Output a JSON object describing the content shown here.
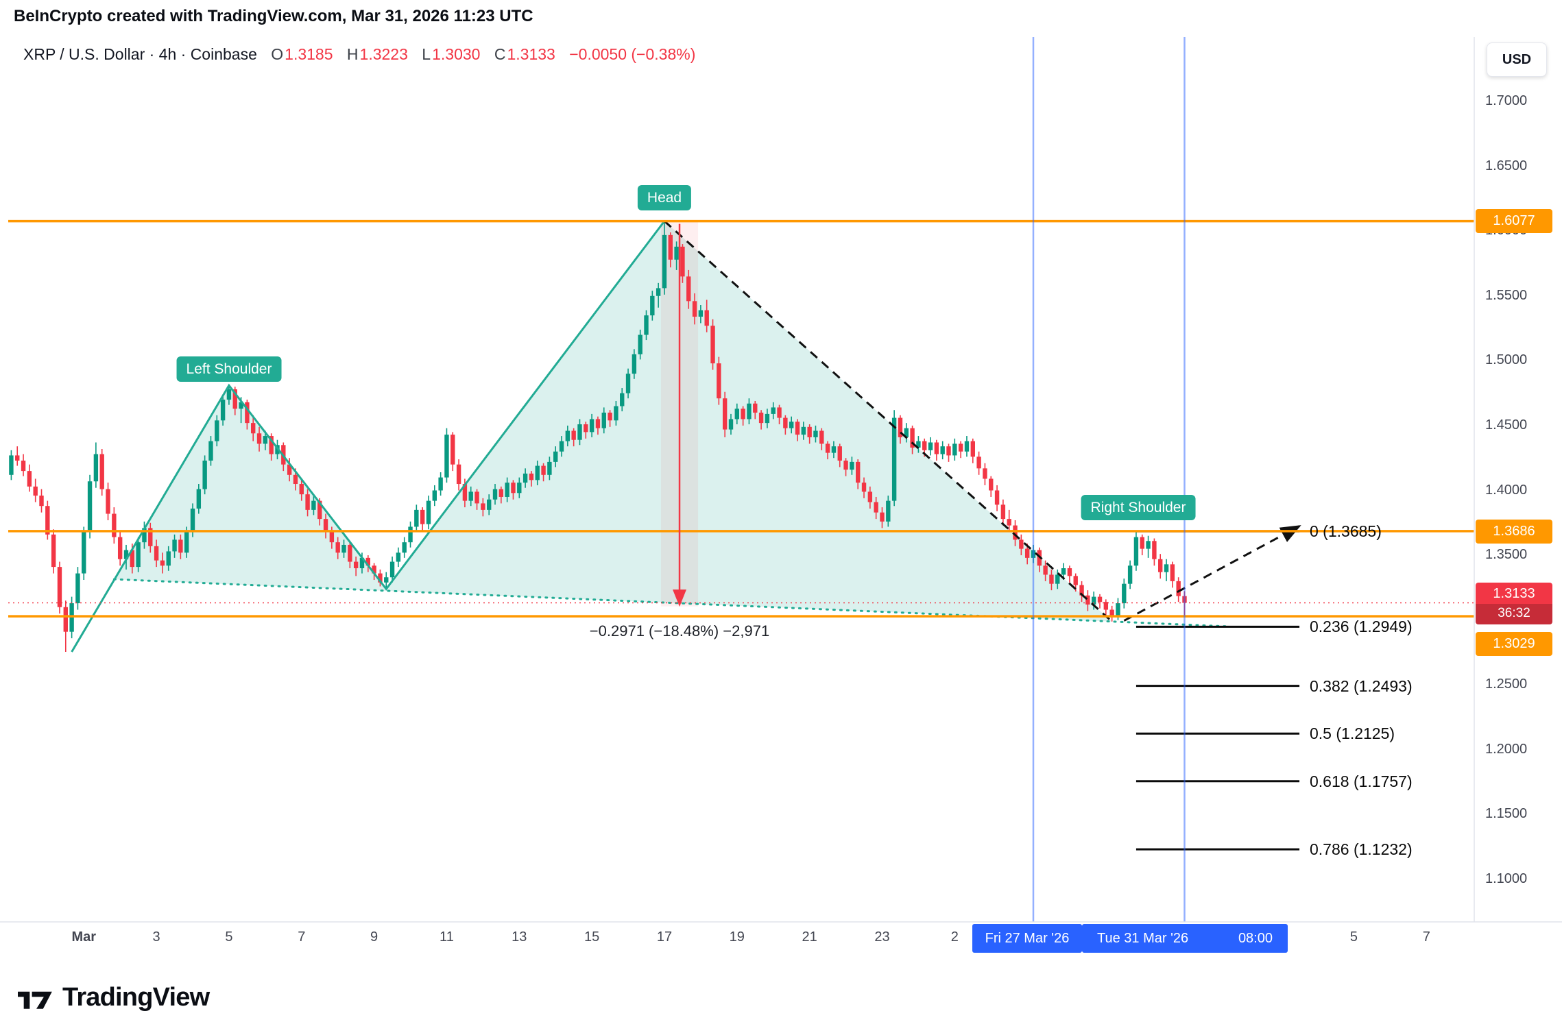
{
  "page": {
    "title_bar": "BeInCrypto created with TradingView.com, Mar 31, 2026 11:23 UTC"
  },
  "header": {
    "symbol": "XRP / U.S. Dollar · 4h · Coinbase",
    "o_label": "O",
    "o": "1.3185",
    "h_label": "H",
    "h": "1.3223",
    "l_label": "L",
    "l": "1.3030",
    "c_label": "C",
    "c": "1.3133",
    "change": "−0.0050 (−0.38%)"
  },
  "price_scale": {
    "currency": "USD",
    "resistance": "1.6077",
    "pattern_top": "1.3686",
    "last": "1.3133",
    "countdown": "36:32",
    "support": "1.3029"
  },
  "time_scale": {
    "badge_1": "Fri 27 Mar '26",
    "badge_2_date": "Tue 31 Mar '26",
    "badge_2_time": "08:00"
  },
  "footer": {
    "brand": "TradingView"
  },
  "colors": {
    "up": "#089981",
    "down": "#f23645",
    "pattern": "#22ab94",
    "pattern_fill": "rgba(34,171,148,0.16)",
    "orange": "#ff9800",
    "blue": "#2962ff",
    "black": "#111111",
    "red": "#f23645"
  },
  "chart_data": {
    "type": "candlestick",
    "title": "XRP / U.S. Dollar · 4h · Coinbase",
    "symbol": "XRP/USD",
    "interval": "4h",
    "exchange": "Coinbase",
    "last_candle_ohlc": {
      "o": 1.3185,
      "h": 1.3223,
      "l": 1.303,
      "c": 1.3133
    },
    "y_axis": {
      "min": 1.067,
      "max": 1.75,
      "tick_step": 0.05,
      "ticks": [
        "1.7000",
        "1.6500",
        "1.6000",
        "1.5500",
        "1.5000",
        "1.4500",
        "1.4000",
        "1.3500",
        "1.2500",
        "1.2000",
        "1.1500",
        "1.1000"
      ]
    },
    "x_axis": {
      "first_candle": "2026-02-27 00:00 UTC",
      "candles_per_day": 6,
      "ticks": [
        {
          "label": "Mar",
          "idx": 12
        },
        {
          "label": "3",
          "idx": 24
        },
        {
          "label": "5",
          "idx": 36
        },
        {
          "label": "7",
          "idx": 48
        },
        {
          "label": "9",
          "idx": 60
        },
        {
          "label": "11",
          "idx": 72
        },
        {
          "label": "13",
          "idx": 84
        },
        {
          "label": "15",
          "idx": 96
        },
        {
          "label": "17",
          "idx": 108
        },
        {
          "label": "19",
          "idx": 120
        },
        {
          "label": "21",
          "idx": 132
        },
        {
          "label": "23",
          "idx": 144
        },
        {
          "label": "2",
          "idx": 156
        },
        {
          "label": "5",
          "idx": 222
        },
        {
          "label": "7",
          "idx": 234
        }
      ]
    },
    "candles": [
      [
        1.412,
        1.431,
        1.408,
        1.427
      ],
      [
        1.427,
        1.434,
        1.419,
        1.423
      ],
      [
        1.423,
        1.428,
        1.411,
        1.415
      ],
      [
        1.415,
        1.42,
        1.399,
        1.403
      ],
      [
        1.403,
        1.409,
        1.391,
        1.396
      ],
      [
        1.396,
        1.401,
        1.383,
        1.388
      ],
      [
        1.388,
        1.392,
        1.362,
        1.366
      ],
      [
        1.366,
        1.37,
        1.336,
        1.341
      ],
      [
        1.341,
        1.345,
        1.305,
        1.31
      ],
      [
        1.31,
        1.315,
        1.2755,
        1.291
      ],
      [
        1.291,
        1.318,
        1.286,
        1.313
      ],
      [
        1.313,
        1.341,
        1.308,
        1.336
      ],
      [
        1.336,
        1.372,
        1.331,
        1.368
      ],
      [
        1.368,
        1.412,
        1.363,
        1.407
      ],
      [
        1.407,
        1.437,
        1.402,
        1.428
      ],
      [
        1.428,
        1.432,
        1.396,
        1.401
      ],
      [
        1.401,
        1.406,
        1.377,
        1.382
      ],
      [
        1.382,
        1.387,
        1.359,
        1.364
      ],
      [
        1.364,
        1.369,
        1.342,
        1.347
      ],
      [
        1.347,
        1.358,
        1.339,
        1.354
      ],
      [
        1.354,
        1.359,
        1.336,
        1.341
      ],
      [
        1.341,
        1.364,
        1.337,
        1.36
      ],
      [
        1.36,
        1.376,
        1.355,
        1.371
      ],
      [
        1.371,
        1.375,
        1.352,
        1.357
      ],
      [
        1.357,
        1.362,
        1.341,
        1.346
      ],
      [
        1.346,
        1.352,
        1.336,
        1.342
      ],
      [
        1.342,
        1.357,
        1.338,
        1.353
      ],
      [
        1.353,
        1.366,
        1.348,
        1.362
      ],
      [
        1.362,
        1.366,
        1.347,
        1.352
      ],
      [
        1.352,
        1.372,
        1.348,
        1.368
      ],
      [
        1.368,
        1.39,
        1.364,
        1.386
      ],
      [
        1.386,
        1.405,
        1.382,
        1.401
      ],
      [
        1.401,
        1.427,
        1.397,
        1.423
      ],
      [
        1.423,
        1.442,
        1.419,
        1.438
      ],
      [
        1.438,
        1.458,
        1.434,
        1.454
      ],
      [
        1.454,
        1.474,
        1.45,
        1.47
      ],
      [
        1.47,
        1.481,
        1.466,
        1.478
      ],
      [
        1.478,
        1.48,
        1.458,
        1.463
      ],
      [
        1.463,
        1.472,
        1.452,
        1.468
      ],
      [
        1.468,
        1.47,
        1.447,
        1.452
      ],
      [
        1.452,
        1.458,
        1.438,
        1.444
      ],
      [
        1.444,
        1.449,
        1.43,
        1.436
      ],
      [
        1.436,
        1.446,
        1.431,
        1.442
      ],
      [
        1.442,
        1.444,
        1.423,
        1.428
      ],
      [
        1.428,
        1.439,
        1.424,
        1.435
      ],
      [
        1.435,
        1.437,
        1.415,
        1.42
      ],
      [
        1.42,
        1.425,
        1.407,
        1.412
      ],
      [
        1.412,
        1.417,
        1.4,
        1.405
      ],
      [
        1.405,
        1.409,
        1.392,
        1.397
      ],
      [
        1.397,
        1.401,
        1.38,
        1.385
      ],
      [
        1.385,
        1.396,
        1.381,
        1.392
      ],
      [
        1.392,
        1.394,
        1.373,
        1.378
      ],
      [
        1.378,
        1.382,
        1.363,
        1.368
      ],
      [
        1.368,
        1.372,
        1.355,
        1.36
      ],
      [
        1.36,
        1.364,
        1.347,
        1.352
      ],
      [
        1.352,
        1.362,
        1.348,
        1.358
      ],
      [
        1.358,
        1.36,
        1.34,
        1.345
      ],
      [
        1.345,
        1.349,
        1.334,
        1.34
      ],
      [
        1.34,
        1.352,
        1.336,
        1.348
      ],
      [
        1.348,
        1.35,
        1.337,
        1.342
      ],
      [
        1.342,
        1.344,
        1.331,
        1.336
      ],
      [
        1.336,
        1.339,
        1.326,
        1.329
      ],
      [
        1.329,
        1.337,
        1.324,
        1.333
      ],
      [
        1.333,
        1.349,
        1.329,
        1.345
      ],
      [
        1.345,
        1.356,
        1.341,
        1.352
      ],
      [
        1.352,
        1.364,
        1.348,
        1.36
      ],
      [
        1.36,
        1.376,
        1.356,
        1.372
      ],
      [
        1.372,
        1.389,
        1.368,
        1.385
      ],
      [
        1.385,
        1.387,
        1.369,
        1.374
      ],
      [
        1.374,
        1.396,
        1.37,
        1.392
      ],
      [
        1.392,
        1.404,
        1.388,
        1.4
      ],
      [
        1.4,
        1.414,
        1.396,
        1.41
      ],
      [
        1.41,
        1.448,
        1.406,
        1.443
      ],
      [
        1.443,
        1.445,
        1.415,
        1.42
      ],
      [
        1.42,
        1.424,
        1.4,
        1.405
      ],
      [
        1.405,
        1.409,
        1.387,
        1.392
      ],
      [
        1.392,
        1.403,
        1.388,
        1.399
      ],
      [
        1.399,
        1.401,
        1.385,
        1.39
      ],
      [
        1.39,
        1.394,
        1.38,
        1.385
      ],
      [
        1.385,
        1.397,
        1.381,
        1.393
      ],
      [
        1.393,
        1.405,
        1.389,
        1.401
      ],
      [
        1.401,
        1.403,
        1.39,
        1.395
      ],
      [
        1.395,
        1.41,
        1.391,
        1.406
      ],
      [
        1.406,
        1.408,
        1.393,
        1.398
      ],
      [
        1.398,
        1.41,
        1.394,
        1.406
      ],
      [
        1.406,
        1.417,
        1.402,
        1.413
      ],
      [
        1.413,
        1.415,
        1.403,
        1.408
      ],
      [
        1.408,
        1.423,
        1.404,
        1.419
      ],
      [
        1.419,
        1.421,
        1.407,
        1.412
      ],
      [
        1.412,
        1.426,
        1.408,
        1.422
      ],
      [
        1.422,
        1.434,
        1.418,
        1.43
      ],
      [
        1.43,
        1.442,
        1.426,
        1.438
      ],
      [
        1.438,
        1.45,
        1.434,
        1.446
      ],
      [
        1.446,
        1.448,
        1.434,
        1.439
      ],
      [
        1.439,
        1.455,
        1.435,
        1.451
      ],
      [
        1.451,
        1.453,
        1.44,
        1.445
      ],
      [
        1.445,
        1.459,
        1.441,
        1.455
      ],
      [
        1.455,
        1.457,
        1.443,
        1.448
      ],
      [
        1.448,
        1.464,
        1.444,
        1.46
      ],
      [
        1.46,
        1.462,
        1.449,
        1.454
      ],
      [
        1.454,
        1.469,
        1.45,
        1.465
      ],
      [
        1.465,
        1.479,
        1.461,
        1.475
      ],
      [
        1.475,
        1.494,
        1.471,
        1.49
      ],
      [
        1.49,
        1.509,
        1.486,
        1.505
      ],
      [
        1.505,
        1.524,
        1.501,
        1.52
      ],
      [
        1.52,
        1.539,
        1.516,
        1.535
      ],
      [
        1.535,
        1.554,
        1.531,
        1.55
      ],
      [
        1.55,
        1.56,
        1.541,
        1.556
      ],
      [
        1.556,
        1.6077,
        1.551,
        1.597
      ],
      [
        1.597,
        1.599,
        1.572,
        1.578
      ],
      [
        1.578,
        1.592,
        1.57,
        1.588
      ],
      [
        1.588,
        1.59,
        1.56,
        1.565
      ],
      [
        1.565,
        1.57,
        1.54,
        1.546
      ],
      [
        1.546,
        1.552,
        1.528,
        1.534
      ],
      [
        1.534,
        1.543,
        1.529,
        1.539
      ],
      [
        1.539,
        1.547,
        1.522,
        1.527
      ],
      [
        1.527,
        1.532,
        1.493,
        1.498
      ],
      [
        1.498,
        1.503,
        1.466,
        1.471
      ],
      [
        1.471,
        1.476,
        1.441,
        1.447
      ],
      [
        1.447,
        1.459,
        1.443,
        1.455
      ],
      [
        1.455,
        1.467,
        1.451,
        1.463
      ],
      [
        1.463,
        1.465,
        1.45,
        1.455
      ],
      [
        1.455,
        1.471,
        1.451,
        1.467
      ],
      [
        1.467,
        1.469,
        1.455,
        1.46
      ],
      [
        1.46,
        1.462,
        1.447,
        1.452
      ],
      [
        1.452,
        1.463,
        1.448,
        1.459
      ],
      [
        1.459,
        1.468,
        1.455,
        1.464
      ],
      [
        1.464,
        1.466,
        1.451,
        1.456
      ],
      [
        1.456,
        1.458,
        1.443,
        1.448
      ],
      [
        1.448,
        1.457,
        1.444,
        1.453
      ],
      [
        1.453,
        1.455,
        1.438,
        1.443
      ],
      [
        1.443,
        1.453,
        1.439,
        1.449
      ],
      [
        1.449,
        1.451,
        1.436,
        1.441
      ],
      [
        1.441,
        1.45,
        1.437,
        1.446
      ],
      [
        1.446,
        1.448,
        1.431,
        1.436
      ],
      [
        1.436,
        1.438,
        1.424,
        1.429
      ],
      [
        1.429,
        1.438,
        1.425,
        1.434
      ],
      [
        1.434,
        1.436,
        1.418,
        1.423
      ],
      [
        1.423,
        1.425,
        1.411,
        1.416
      ],
      [
        1.416,
        1.426,
        1.412,
        1.422
      ],
      [
        1.422,
        1.424,
        1.401,
        1.406
      ],
      [
        1.406,
        1.41,
        1.394,
        1.399
      ],
      [
        1.399,
        1.403,
        1.386,
        1.391
      ],
      [
        1.391,
        1.395,
        1.378,
        1.383
      ],
      [
        1.383,
        1.387,
        1.371,
        1.376
      ],
      [
        1.376,
        1.396,
        1.372,
        1.392
      ],
      [
        1.392,
        1.462,
        1.388,
        1.456
      ],
      [
        1.456,
        1.458,
        1.436,
        1.441
      ],
      [
        1.441,
        1.452,
        1.437,
        1.448
      ],
      [
        1.448,
        1.45,
        1.428,
        1.433
      ],
      [
        1.433,
        1.442,
        1.429,
        1.438
      ],
      [
        1.438,
        1.44,
        1.426,
        1.431
      ],
      [
        1.431,
        1.441,
        1.427,
        1.437
      ],
      [
        1.437,
        1.439,
        1.423,
        1.428
      ],
      [
        1.428,
        1.438,
        1.424,
        1.434
      ],
      [
        1.434,
        1.436,
        1.422,
        1.427
      ],
      [
        1.427,
        1.44,
        1.423,
        1.436
      ],
      [
        1.436,
        1.438,
        1.425,
        1.43
      ],
      [
        1.43,
        1.442,
        1.426,
        1.438
      ],
      [
        1.438,
        1.44,
        1.421,
        1.426
      ],
      [
        1.426,
        1.43,
        1.412,
        1.417
      ],
      [
        1.417,
        1.421,
        1.404,
        1.409
      ],
      [
        1.409,
        1.411,
        1.395,
        1.4
      ],
      [
        1.4,
        1.404,
        1.384,
        1.389
      ],
      [
        1.389,
        1.393,
        1.373,
        1.378
      ],
      [
        1.378,
        1.385,
        1.368,
        1.373
      ],
      [
        1.373,
        1.377,
        1.357,
        1.362
      ],
      [
        1.362,
        1.366,
        1.35,
        1.355
      ],
      [
        1.355,
        1.359,
        1.343,
        1.348
      ],
      [
        1.348,
        1.358,
        1.344,
        1.354
      ],
      [
        1.354,
        1.356,
        1.337,
        1.342
      ],
      [
        1.342,
        1.346,
        1.33,
        1.335
      ],
      [
        1.335,
        1.339,
        1.323,
        1.328
      ],
      [
        1.328,
        1.339,
        1.324,
        1.335
      ],
      [
        1.335,
        1.344,
        1.331,
        1.34
      ],
      [
        1.34,
        1.342,
        1.329,
        1.334
      ],
      [
        1.334,
        1.336,
        1.322,
        1.327
      ],
      [
        1.327,
        1.33,
        1.314,
        1.319
      ],
      [
        1.319,
        1.323,
        1.307,
        1.312
      ],
      [
        1.312,
        1.322,
        1.308,
        1.318
      ],
      [
        1.318,
        1.32,
        1.309,
        1.314
      ],
      [
        1.314,
        1.316,
        1.303,
        1.308
      ],
      [
        1.308,
        1.311,
        1.2989,
        1.303
      ],
      [
        1.303,
        1.317,
        1.3,
        1.313
      ],
      [
        1.313,
        1.332,
        1.309,
        1.328
      ],
      [
        1.328,
        1.346,
        1.324,
        1.342
      ],
      [
        1.342,
        1.3686,
        1.338,
        1.364
      ],
      [
        1.364,
        1.366,
        1.35,
        1.355
      ],
      [
        1.355,
        1.365,
        1.348,
        1.361
      ],
      [
        1.361,
        1.363,
        1.342,
        1.347
      ],
      [
        1.347,
        1.351,
        1.332,
        1.337
      ],
      [
        1.337,
        1.347,
        1.33,
        1.343
      ],
      [
        1.343,
        1.345,
        1.325,
        1.33
      ],
      [
        1.33,
        1.333,
        1.314,
        1.3185
      ],
      [
        1.3185,
        1.3223,
        1.303,
        1.3133
      ]
    ],
    "annotations": {
      "pattern": {
        "name": "Head and Shoulders",
        "labels": {
          "head": "Head",
          "left": "Left Shoulder",
          "right": "Right Shoulder"
        },
        "points": {
          "left_base": [
            10,
            1.2755
          ],
          "left_shoulder": [
            36,
            1.481
          ],
          "left_trough": [
            62,
            1.324
          ],
          "head": [
            108,
            1.6077
          ],
          "right_trough": [
            182,
            1.2989
          ],
          "right_shoulder": [
            186,
            1.3686
          ]
        },
        "neckline": {
          "from": [
            17,
            1.3315
          ],
          "to": [
            182,
            1.2989
          ],
          "extend_to_idx": 201
        }
      },
      "hlines": [
        {
          "price": 1.6077,
          "label": "1.6077"
        },
        {
          "price": 1.3686,
          "label": "1.3686"
        },
        {
          "price": 1.3029,
          "label": "1.3029"
        }
      ],
      "last_price_line": {
        "price": 1.3133
      },
      "measure": {
        "from": [
          108,
          1.6077
        ],
        "to": [
          113,
          1.3106
        ],
        "text": "−0.2971 (−18.48%) −2,971"
      },
      "projection": {
        "from": [
          184,
          1.2995
        ],
        "to_idx": 213,
        "to_price": 1.3725
      },
      "fib": {
        "x_from_idx": 186,
        "x_to_idx": 213,
        "levels": [
          {
            "label": "0 (1.3685)",
            "price": 1.3685
          },
          {
            "label": "0.236 (1.2949)",
            "price": 1.2949
          },
          {
            "label": "0.382 (1.2493)",
            "price": 1.2493
          },
          {
            "label": "0.5 (1.2125)",
            "price": 1.2125
          },
          {
            "label": "0.618 (1.1757)",
            "price": 1.1757
          },
          {
            "label": "0.786 (1.1232)",
            "price": 1.1232
          }
        ]
      },
      "vlines": [
        {
          "idx": 169,
          "label": "Fri 27 Mar '26"
        },
        {
          "idx": 194,
          "label": "Tue 31 Mar '26 08:00"
        }
      ]
    }
  }
}
